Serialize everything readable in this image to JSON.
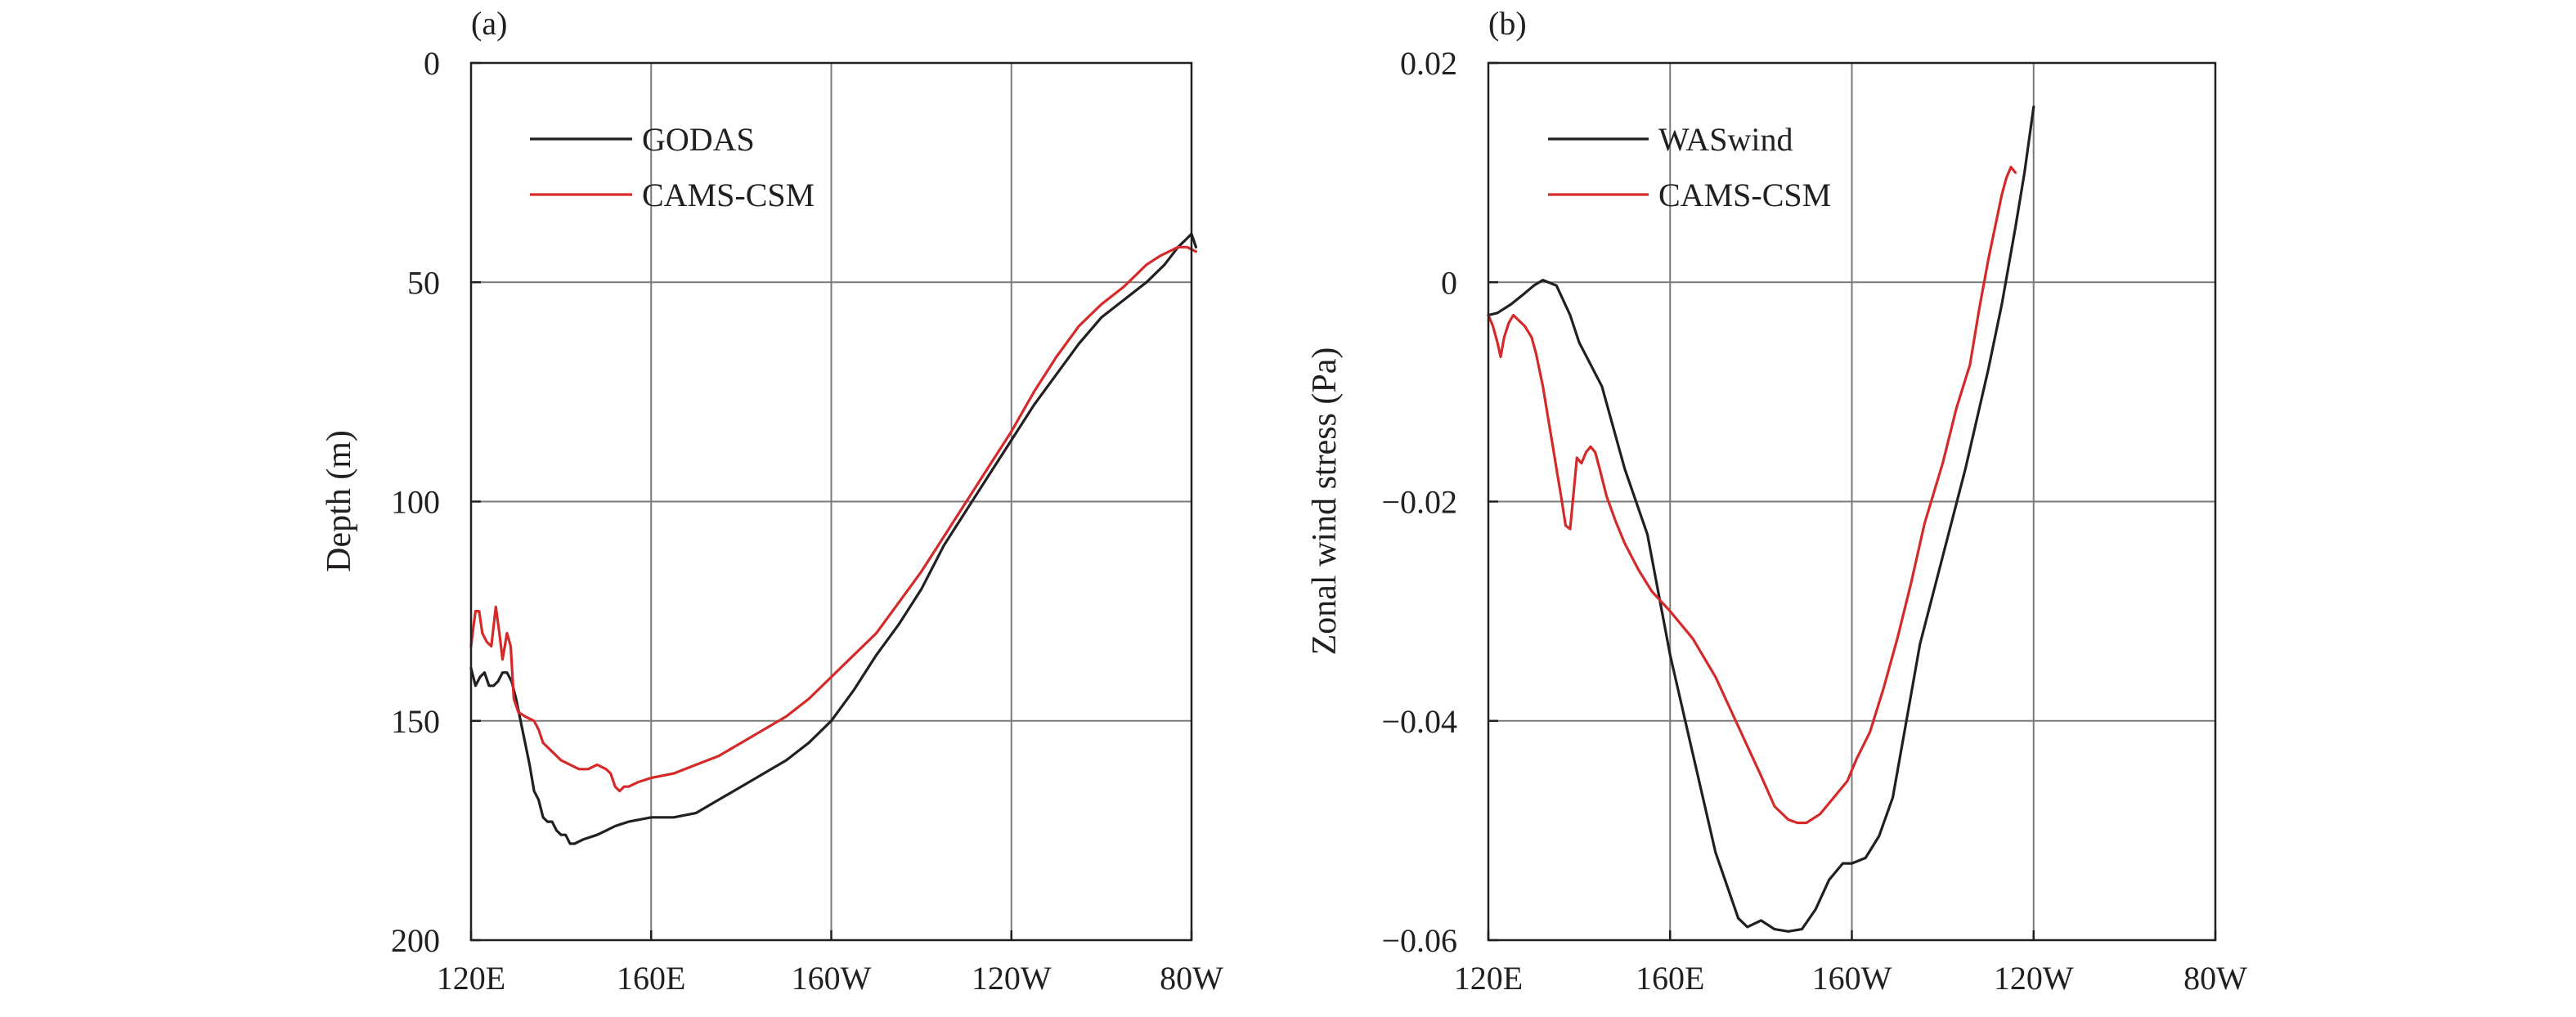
{
  "colors": {
    "black": "#231f20",
    "red": "#d42a2a",
    "grid": "#7a7a7a"
  },
  "chart_data": [
    {
      "type": "line",
      "panel_label": "(a)",
      "title": "",
      "xlabel": "",
      "ylabel": "Depth (m)",
      "xlim": [
        120,
        280
      ],
      "ylim": [
        200,
        0
      ],
      "y_inverted": true,
      "grid": true,
      "legend_position": "top-left",
      "x_ticks": [
        {
          "value": 120,
          "label": "120E"
        },
        {
          "value": 160,
          "label": "160E"
        },
        {
          "value": 200,
          "label": "160W"
        },
        {
          "value": 240,
          "label": "120W"
        },
        {
          "value": 280,
          "label": "80W"
        }
      ],
      "y_ticks": [
        {
          "value": 0,
          "label": "0"
        },
        {
          "value": 50,
          "label": "50"
        },
        {
          "value": 100,
          "label": "100"
        },
        {
          "value": 150,
          "label": "150"
        },
        {
          "value": 200,
          "label": "200"
        }
      ],
      "series": [
        {
          "name": "GODAS",
          "color": "#231f20",
          "points": [
            [
              120,
              138
            ],
            [
              121,
              142
            ],
            [
              122,
              140
            ],
            [
              123,
              139
            ],
            [
              124,
              142
            ],
            [
              125,
              142
            ],
            [
              126,
              141
            ],
            [
              127,
              139
            ],
            [
              128,
              139
            ],
            [
              129,
              141
            ],
            [
              130,
              145
            ],
            [
              131,
              150
            ],
            [
              132,
              155
            ],
            [
              133,
              160
            ],
            [
              134,
              166
            ],
            [
              135,
              168
            ],
            [
              136,
              172
            ],
            [
              137,
              173
            ],
            [
              138,
              173
            ],
            [
              139,
              175
            ],
            [
              140,
              176
            ],
            [
              141,
              176
            ],
            [
              142,
              178
            ],
            [
              143,
              178
            ],
            [
              145,
              177
            ],
            [
              148,
              176
            ],
            [
              150,
              175
            ],
            [
              152,
              174
            ],
            [
              155,
              173
            ],
            [
              160,
              172
            ],
            [
              165,
              172
            ],
            [
              170,
              171
            ],
            [
              175,
              168
            ],
            [
              180,
              165
            ],
            [
              185,
              162
            ],
            [
              190,
              159
            ],
            [
              195,
              155
            ],
            [
              200,
              150
            ],
            [
              205,
              143
            ],
            [
              210,
              135
            ],
            [
              215,
              128
            ],
            [
              220,
              120
            ],
            [
              225,
              110
            ],
            [
              230,
              102
            ],
            [
              235,
              94
            ],
            [
              240,
              86
            ],
            [
              245,
              78
            ],
            [
              250,
              71
            ],
            [
              255,
              64
            ],
            [
              260,
              58
            ],
            [
              265,
              54
            ],
            [
              270,
              50
            ],
            [
              274,
              46
            ],
            [
              277,
              42
            ],
            [
              279,
              40
            ],
            [
              280,
              39
            ],
            [
              281,
              42
            ]
          ]
        },
        {
          "name": "CAMS-CSM",
          "color": "#d42a2a",
          "points": [
            [
              120,
              133
            ],
            [
              120.6,
              128
            ],
            [
              121,
              125
            ],
            [
              121.8,
              125
            ],
            [
              122.5,
              130
            ],
            [
              123.5,
              132
            ],
            [
              124.5,
              133
            ],
            [
              125.5,
              124
            ],
            [
              126.3,
              130
            ],
            [
              127,
              136
            ],
            [
              128,
              130
            ],
            [
              128.8,
              133
            ],
            [
              129.5,
              145
            ],
            [
              130.5,
              148
            ],
            [
              132,
              149
            ],
            [
              134,
              150
            ],
            [
              135,
              152
            ],
            [
              136,
              155
            ],
            [
              138,
              157
            ],
            [
              140,
              159
            ],
            [
              142,
              160
            ],
            [
              144,
              161
            ],
            [
              146,
              161
            ],
            [
              148,
              160
            ],
            [
              150,
              161
            ],
            [
              151,
              162
            ],
            [
              152,
              165
            ],
            [
              153,
              166
            ],
            [
              154,
              165
            ],
            [
              155,
              165
            ],
            [
              157,
              164
            ],
            [
              160,
              163
            ],
            [
              165,
              162
            ],
            [
              170,
              160
            ],
            [
              175,
              158
            ],
            [
              180,
              155
            ],
            [
              185,
              152
            ],
            [
              190,
              149
            ],
            [
              195,
              145
            ],
            [
              200,
              140
            ],
            [
              205,
              135
            ],
            [
              210,
              130
            ],
            [
              215,
              123
            ],
            [
              220,
              116
            ],
            [
              225,
              108
            ],
            [
              230,
              100
            ],
            [
              235,
              92
            ],
            [
              240,
              84
            ],
            [
              245,
              75
            ],
            [
              250,
              67
            ],
            [
              255,
              60
            ],
            [
              260,
              55
            ],
            [
              265,
              51
            ],
            [
              270,
              46
            ],
            [
              273,
              44
            ],
            [
              275,
              43
            ],
            [
              277,
              42
            ],
            [
              279,
              42
            ],
            [
              281,
              43
            ]
          ]
        }
      ]
    },
    {
      "type": "line",
      "panel_label": "(b)",
      "title": "",
      "xlabel": "",
      "ylabel": "Zonal wind stress (Pa)",
      "xlim": [
        120,
        280
      ],
      "ylim": [
        -0.06,
        0.02
      ],
      "grid": true,
      "legend_position": "top-left",
      "x_ticks": [
        {
          "value": 120,
          "label": "120E"
        },
        {
          "value": 160,
          "label": "160E"
        },
        {
          "value": 200,
          "label": "160W"
        },
        {
          "value": 240,
          "label": "120W"
        },
        {
          "value": 280,
          "label": "80W"
        }
      ],
      "y_ticks": [
        {
          "value": 0.02,
          "label": "0.02"
        },
        {
          "value": 0,
          "label": "0"
        },
        {
          "value": -0.02,
          "label": "−0.02"
        },
        {
          "value": -0.04,
          "label": "−0.04"
        },
        {
          "value": -0.06,
          "label": "−0.06"
        }
      ],
      "series": [
        {
          "name": "WASwind",
          "color": "#231f20",
          "points": [
            [
              120,
              -0.003
            ],
            [
              122,
              -0.0028
            ],
            [
              125,
              -0.002
            ],
            [
              128,
              -0.001
            ],
            [
              130,
              -0.0003
            ],
            [
              132,
              0.0002
            ],
            [
              135,
              -0.0003
            ],
            [
              138,
              -0.003
            ],
            [
              140,
              -0.0055
            ],
            [
              145,
              -0.0095
            ],
            [
              150,
              -0.017
            ],
            [
              155,
              -0.023
            ],
            [
              160,
              -0.034
            ],
            [
              165,
              -0.043
            ],
            [
              170,
              -0.052
            ],
            [
              175,
              -0.058
            ],
            [
              177,
              -0.0588
            ],
            [
              180,
              -0.0582
            ],
            [
              183,
              -0.059
            ],
            [
              186,
              -0.0592
            ],
            [
              189,
              -0.059
            ],
            [
              192,
              -0.0572
            ],
            [
              195,
              -0.0545
            ],
            [
              198,
              -0.053
            ],
            [
              200,
              -0.053
            ],
            [
              203,
              -0.0525
            ],
            [
              206,
              -0.0505
            ],
            [
              209,
              -0.047
            ],
            [
              212,
              -0.04
            ],
            [
              215,
              -0.033
            ],
            [
              220,
              -0.025
            ],
            [
              225,
              -0.017
            ],
            [
              230,
              -0.008
            ],
            [
              233,
              -0.002
            ],
            [
              236,
              0.005
            ],
            [
              238,
              0.01
            ],
            [
              240,
              0.016
            ]
          ]
        },
        {
          "name": "CAMS-CSM",
          "color": "#d42a2a",
          "points": [
            [
              120,
              -0.003
            ],
            [
              121,
              -0.004
            ],
            [
              122,
              -0.0055
            ],
            [
              122.7,
              -0.0068
            ],
            [
              123.5,
              -0.005
            ],
            [
              124.5,
              -0.0037
            ],
            [
              125.5,
              -0.003
            ],
            [
              126.5,
              -0.0034
            ],
            [
              128,
              -0.004
            ],
            [
              129.5,
              -0.005
            ],
            [
              130.5,
              -0.0065
            ],
            [
              132,
              -0.0095
            ],
            [
              133,
              -0.012
            ],
            [
              134,
              -0.0145
            ],
            [
              135,
              -0.017
            ],
            [
              136,
              -0.0195
            ],
            [
              137,
              -0.0222
            ],
            [
              138,
              -0.0225
            ],
            [
              138.8,
              -0.019
            ],
            [
              139.5,
              -0.016
            ],
            [
              140.5,
              -0.0165
            ],
            [
              141.5,
              -0.0155
            ],
            [
              142.5,
              -0.015
            ],
            [
              143.5,
              -0.0155
            ],
            [
              144.5,
              -0.017
            ],
            [
              146,
              -0.0195
            ],
            [
              148,
              -0.0218
            ],
            [
              150,
              -0.0238
            ],
            [
              153,
              -0.0262
            ],
            [
              156,
              -0.0282
            ],
            [
              160,
              -0.03
            ],
            [
              165,
              -0.0325
            ],
            [
              170,
              -0.036
            ],
            [
              175,
              -0.0405
            ],
            [
              180,
              -0.045
            ],
            [
              183,
              -0.0478
            ],
            [
              186,
              -0.049
            ],
            [
              188,
              -0.0493
            ],
            [
              190,
              -0.0493
            ],
            [
              193,
              -0.0485
            ],
            [
              196,
              -0.047
            ],
            [
              199,
              -0.0455
            ],
            [
              201,
              -0.0435
            ],
            [
              204,
              -0.041
            ],
            [
              207,
              -0.037
            ],
            [
              210,
              -0.0325
            ],
            [
              213,
              -0.0275
            ],
            [
              216,
              -0.022
            ],
            [
              220,
              -0.0165
            ],
            [
              223,
              -0.0115
            ],
            [
              226,
              -0.0075
            ],
            [
              228,
              -0.0025
            ],
            [
              230,
              0.002
            ],
            [
              232,
              0.006
            ],
            [
              233,
              0.008
            ],
            [
              234,
              0.0095
            ],
            [
              235,
              0.0105
            ],
            [
              236,
              0.01
            ]
          ]
        }
      ]
    }
  ]
}
